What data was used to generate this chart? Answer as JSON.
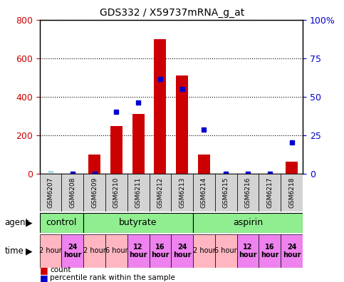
{
  "title": "GDS332 / X59737mRNA_g_at",
  "samples": [
    "GSM6207",
    "GSM6208",
    "GSM6209",
    "GSM6210",
    "GSM6211",
    "GSM6212",
    "GSM6213",
    "GSM6214",
    "GSM6215",
    "GSM6216",
    "GSM6217",
    "GSM6218"
  ],
  "counts": [
    0,
    0,
    100,
    245,
    310,
    700,
    510,
    100,
    0,
    0,
    0,
    60
  ],
  "percentile_ranks_left": [
    2,
    0,
    0,
    320,
    370,
    490,
    440,
    228,
    0,
    0,
    0,
    160
  ],
  "absent_count": [
    false,
    false,
    false,
    false,
    false,
    false,
    false,
    false,
    false,
    false,
    false,
    false
  ],
  "absent_rank": [
    true,
    false,
    false,
    false,
    false,
    false,
    false,
    false,
    false,
    false,
    false,
    false
  ],
  "ylim_left": [
    0,
    800
  ],
  "ylim_right": [
    0,
    100
  ],
  "yticks_left": [
    0,
    200,
    400,
    600,
    800
  ],
  "yticks_right": [
    0,
    25,
    50,
    75,
    100
  ],
  "ytick_labels_right": [
    "0",
    "25",
    "50",
    "75",
    "100%"
  ],
  "agent_groups": [
    {
      "label": "control",
      "start": 0,
      "end": 2,
      "color": "#90ee90"
    },
    {
      "label": "butyrate",
      "start": 2,
      "end": 7,
      "color": "#90ee90"
    },
    {
      "label": "aspirin",
      "start": 7,
      "end": 12,
      "color": "#90ee90"
    }
  ],
  "time_labels": [
    "2 hour",
    "24\nhour",
    "2 hour",
    "6 hour",
    "12\nhour",
    "16\nhour",
    "24\nhour",
    "2 hour",
    "6 hour",
    "12\nhour",
    "16\nhour",
    "24\nhour"
  ],
  "time_highlight": [
    false,
    true,
    false,
    false,
    true,
    true,
    true,
    false,
    false,
    true,
    true,
    true
  ],
  "time_color_normal": "#ffb6c1",
  "time_color_highlight": "#ee82ee",
  "bar_color": "#cc0000",
  "dot_color": "#0000cc",
  "absent_bar_color": "#ffb6c1",
  "absent_dot_color": "#add8e6",
  "left_axis_color": "#cc0000",
  "right_axis_color": "#0000cc",
  "sample_box_color": "#d3d3d3"
}
